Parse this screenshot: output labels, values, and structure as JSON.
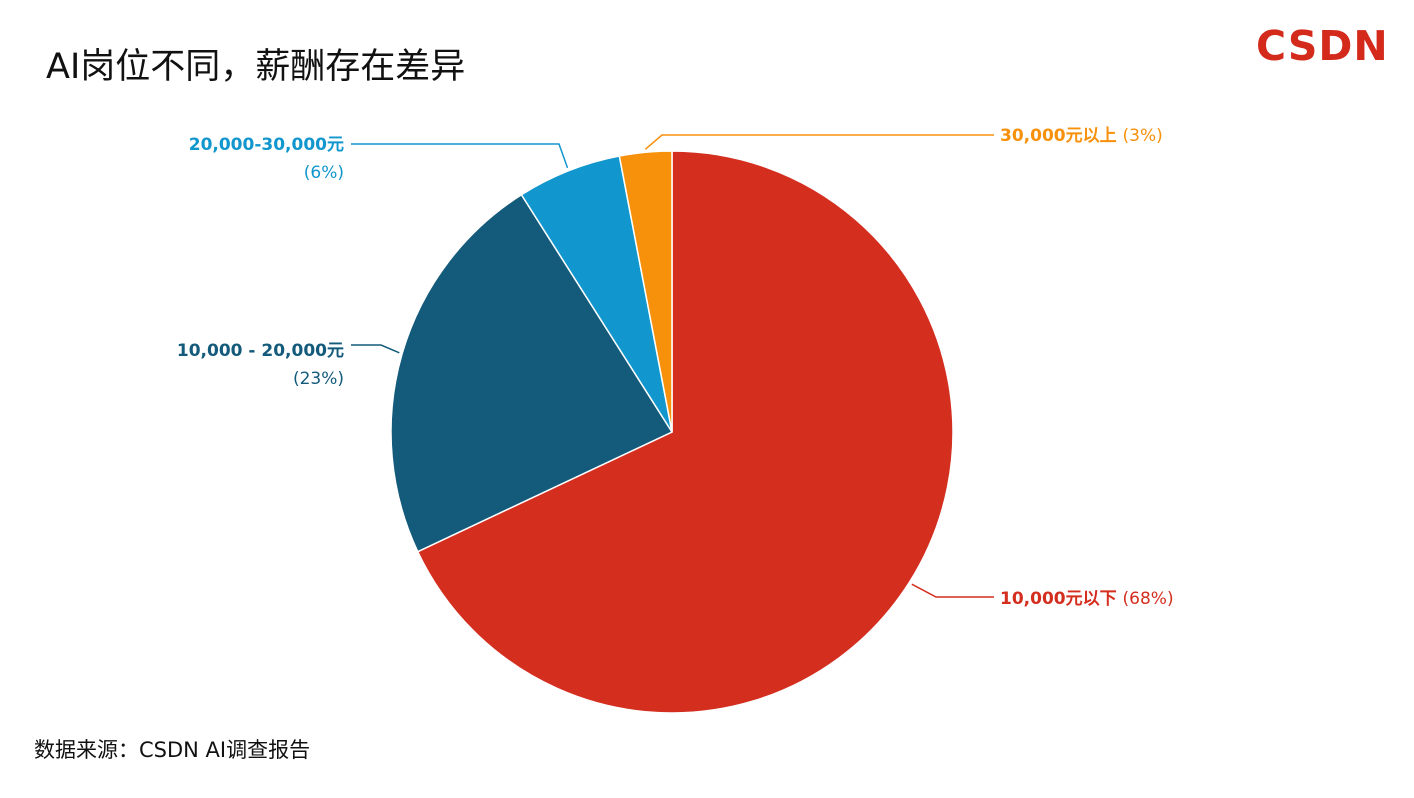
{
  "header": {
    "title": "AI岗位不同，薪酬存在差异",
    "logo": "CSDN"
  },
  "footer": {
    "source": "数据来源：CSDN AI调查报告"
  },
  "chart_data": {
    "type": "pie",
    "title": "AI岗位不同，薪酬存在差异",
    "slices": [
      {
        "label": "10,000元以下",
        "pct_label": "(68%)",
        "value": 68,
        "color": "#d42e1f"
      },
      {
        "label": "10,000 - 20,000元",
        "pct_label": "(23%)",
        "value": 23,
        "color": "#135a7b"
      },
      {
        "label": "20,000-30,000元",
        "pct_label": "(6%)",
        "value": 6,
        "color": "#1196cd"
      },
      {
        "label": "30,000元以上",
        "pct_label": "(3%)",
        "value": 3,
        "color": "#f7900b"
      }
    ]
  }
}
